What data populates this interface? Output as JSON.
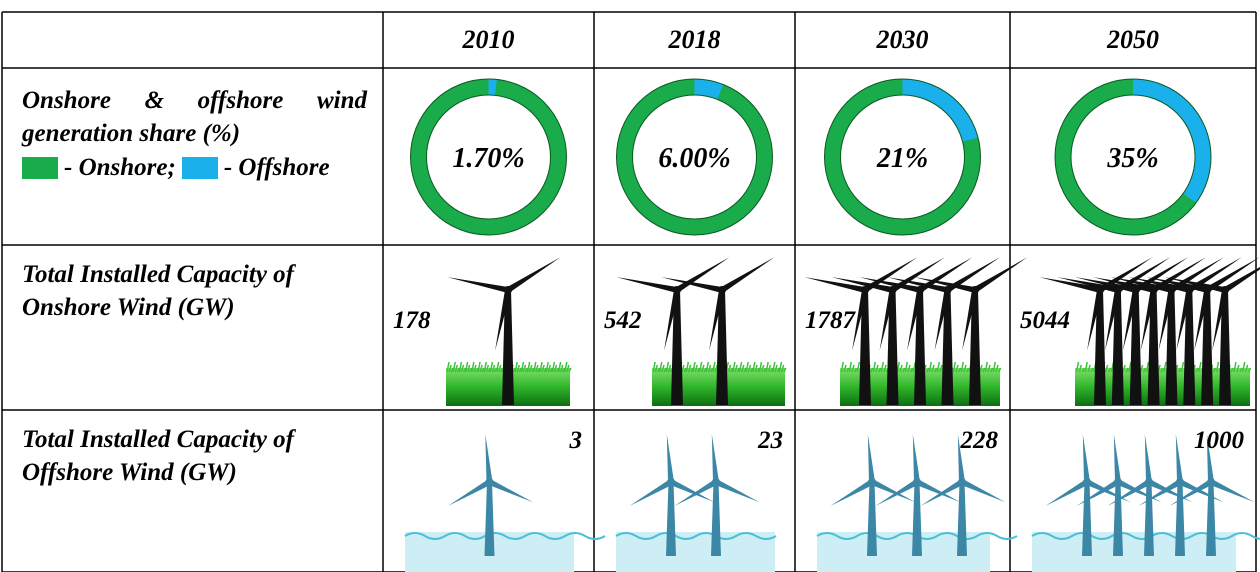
{
  "table": {
    "years": [
      "2010",
      "2018",
      "2030",
      "2050"
    ],
    "share": {
      "label": "Onshore & offshore wind generation share (%)",
      "legend": [
        {
          "name": "- Onshore;",
          "color": "#1aab4a"
        },
        {
          "name": "- Offshore",
          "color": "#1ab0ec"
        }
      ],
      "values": [
        1.7,
        6,
        21,
        35
      ],
      "value_labels": [
        "1.70%",
        "6.00%",
        "21%",
        "35%"
      ]
    },
    "onshore": {
      "label": "Total Installed Capacity of Onshore Wind (GW)",
      "values": [
        178,
        542,
        1787,
        5044
      ]
    },
    "offshore": {
      "label": "Total Installed Capacity of Offshore Wind (GW)",
      "values": [
        3,
        23,
        228,
        1000
      ]
    }
  }
}
